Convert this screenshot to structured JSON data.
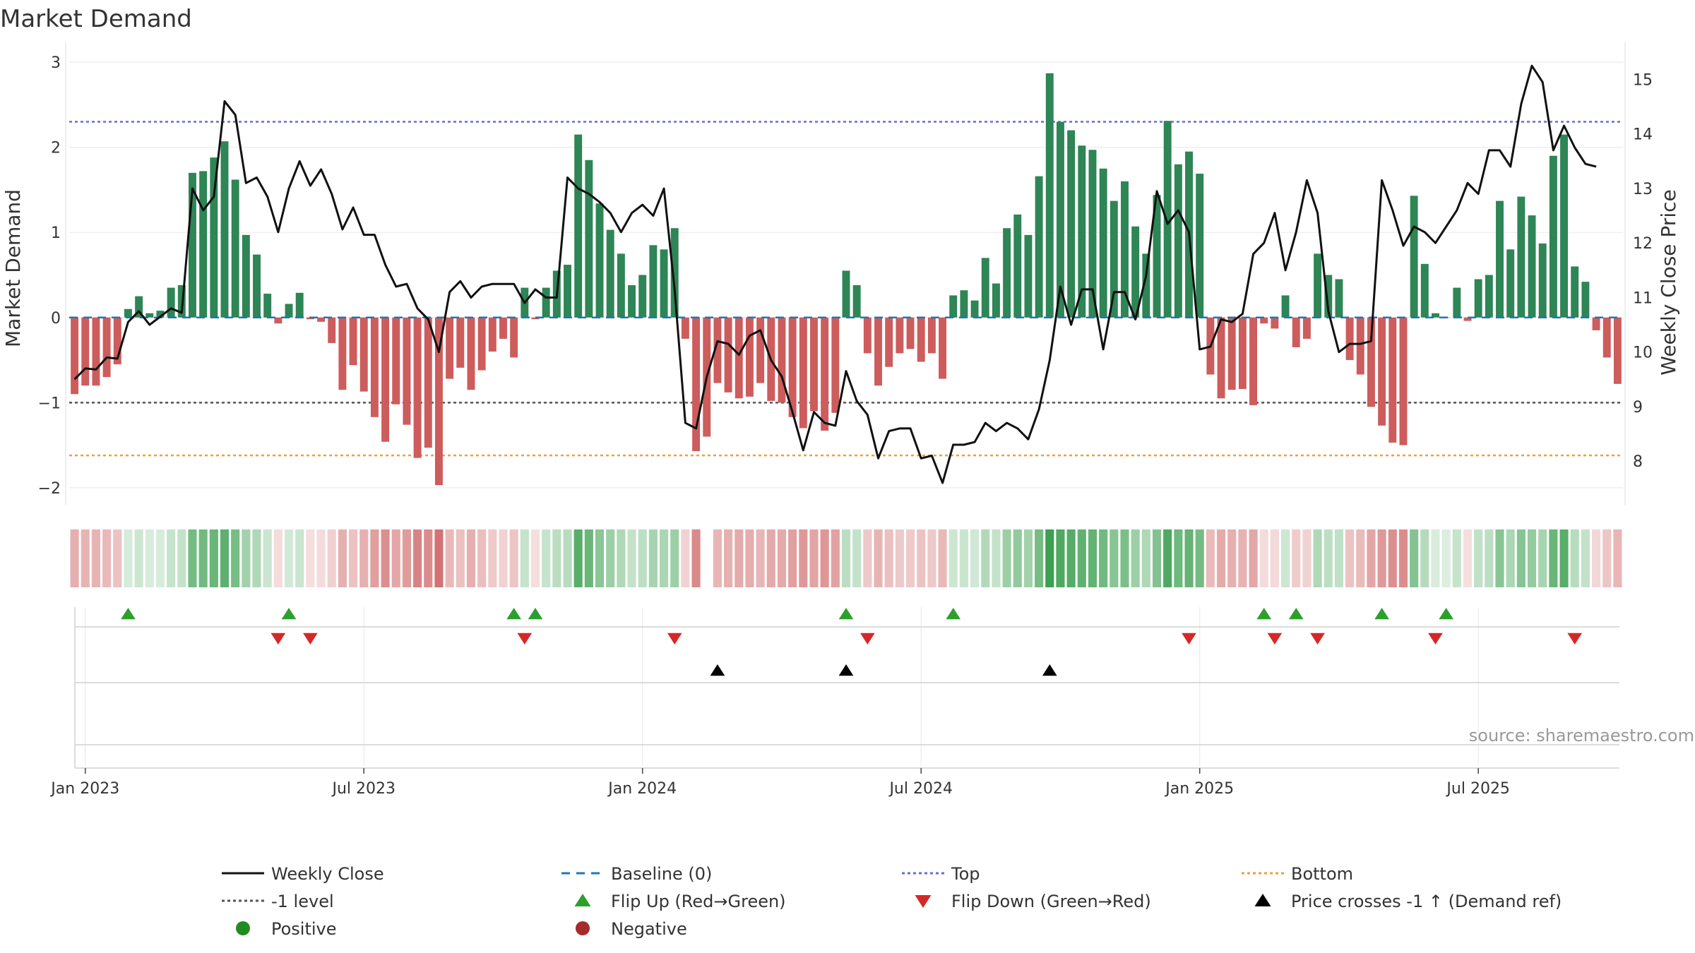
{
  "chart_data": {
    "type": "bar",
    "title": "Market Demand",
    "ylabel": "Market Demand",
    "y2label": "Weekly Close Price",
    "ylim": [
      -2.2,
      3.15
    ],
    "y2lim": [
      7.2,
      15.55
    ],
    "yticks": [
      -2,
      -1,
      0,
      1,
      2,
      3
    ],
    "y2ticks": [
      8,
      9,
      10,
      11,
      12,
      13,
      14,
      15
    ],
    "xticks": [
      "Jan 2023",
      "Jul 2023",
      "Jan 2024",
      "Jul 2024",
      "Jan 2025",
      "Jul 2025"
    ],
    "xtick_weeks": [
      1,
      27,
      53,
      79,
      105,
      131
    ],
    "reference_lines": {
      "top": 2.3,
      "bottom": -1.62,
      "level": -1.0,
      "baseline": 0
    },
    "series": [
      {
        "name": "Market Demand",
        "type": "bar",
        "values": [
          -0.9,
          -0.8,
          -0.8,
          -0.7,
          -0.55,
          0.1,
          0.25,
          0.05,
          0.08,
          0.35,
          0.38,
          1.7,
          1.72,
          1.88,
          2.07,
          1.62,
          0.97,
          0.74,
          0.28,
          -0.07,
          0.16,
          0.29,
          -0.02,
          -0.05,
          -0.3,
          -0.85,
          -0.56,
          -0.87,
          -1.17,
          -1.46,
          -1.02,
          -1.26,
          -1.65,
          -1.53,
          -1.97,
          -0.72,
          -0.59,
          -0.85,
          -0.62,
          -0.4,
          -0.25,
          -0.47,
          0.35,
          -0.02,
          0.35,
          0.55,
          0.62,
          2.15,
          1.85,
          1.34,
          1.03,
          0.75,
          0.38,
          0.5,
          0.85,
          0.8,
          1.05,
          -0.25,
          -1.57,
          -1.4,
          -0.77,
          -0.88,
          -0.95,
          -0.93,
          -0.77,
          -0.98,
          -1.0,
          -1.17,
          -1.3,
          -1.1,
          -1.33,
          -1.12,
          0.55,
          0.38,
          -0.42,
          -0.8,
          -0.58,
          -0.42,
          -0.37,
          -0.52,
          -0.42,
          -0.72,
          0.26,
          0.32,
          0.2,
          0.7,
          0.4,
          1.05,
          1.21,
          0.97,
          1.66,
          2.87,
          2.3,
          2.2,
          2.02,
          1.97,
          1.75,
          1.37,
          1.6,
          1.07,
          0.75,
          1.44,
          2.31,
          1.8,
          1.95,
          1.69,
          -0.67,
          -0.95,
          -0.85,
          -0.84,
          -1.03,
          -0.07,
          -0.13,
          0.26,
          -0.35,
          -0.25,
          0.75,
          0.5,
          0.45,
          -0.5,
          -0.67,
          -1.05,
          -1.27,
          -1.47,
          -1.5,
          1.43,
          0.63,
          0.05,
          0.0,
          0.35,
          -0.04,
          0.45,
          0.5,
          1.37,
          0.8,
          1.42,
          1.2,
          0.87,
          1.9,
          2.15,
          0.6,
          0.42,
          -0.15,
          -0.47,
          -0.78
        ]
      },
      {
        "name": "Weekly Close",
        "type": "line",
        "values": [
          9.5,
          9.7,
          9.68,
          9.9,
          9.88,
          10.55,
          10.75,
          10.5,
          10.65,
          10.8,
          10.72,
          13.0,
          12.6,
          12.85,
          14.6,
          14.35,
          13.1,
          13.2,
          12.85,
          12.2,
          13.0,
          13.5,
          13.05,
          13.35,
          12.9,
          12.25,
          12.65,
          12.15,
          12.15,
          11.6,
          11.2,
          11.25,
          10.8,
          10.6,
          10.0,
          11.1,
          11.3,
          11.0,
          11.2,
          11.25,
          11.25,
          11.25,
          10.9,
          11.15,
          11.0,
          11.0,
          13.2,
          13.0,
          12.9,
          12.75,
          12.55,
          12.2,
          12.55,
          12.7,
          12.5,
          13.0,
          11.15,
          8.7,
          8.6,
          9.55,
          10.2,
          10.15,
          9.95,
          10.3,
          10.4,
          9.85,
          9.55,
          8.9,
          8.2,
          8.9,
          8.7,
          8.65,
          9.65,
          9.1,
          8.85,
          8.05,
          8.55,
          8.6,
          8.6,
          8.05,
          8.1,
          7.6,
          8.3,
          8.3,
          8.35,
          8.7,
          8.55,
          8.7,
          8.6,
          8.4,
          8.95,
          9.85,
          11.2,
          10.5,
          11.15,
          11.15,
          10.05,
          11.1,
          11.1,
          10.6,
          11.4,
          12.95,
          12.35,
          12.6,
          12.2,
          10.05,
          10.1,
          10.6,
          10.55,
          10.7,
          11.8,
          12.0,
          12.55,
          11.5,
          12.2,
          13.15,
          12.55,
          10.75,
          10.0,
          10.15,
          10.15,
          10.2,
          13.15,
          12.6,
          11.95,
          12.3,
          12.2,
          12.0,
          12.3,
          12.6,
          13.1,
          12.9,
          13.7,
          13.7,
          13.4,
          14.55,
          15.25,
          14.95,
          13.7,
          14.15,
          13.75,
          13.45,
          13.4
        ]
      }
    ],
    "demand_strip": {
      "values_source": "Market Demand"
    },
    "flip_up_weeks": [
      5,
      20,
      41,
      43,
      72,
      82,
      111,
      114,
      122,
      128
    ],
    "flip_down_weeks": [
      19,
      22,
      42,
      56,
      74,
      104,
      112,
      116,
      127,
      140
    ],
    "price_cross_weeks": [
      60,
      72,
      91
    ],
    "legend": [
      {
        "label": "Weekly Close",
        "kind": "line",
        "color": "#111111"
      },
      {
        "label": "Baseline (0)",
        "kind": "dash",
        "color": "#1f77b4"
      },
      {
        "label": "Top",
        "kind": "dot",
        "color": "#6a6ad8"
      },
      {
        "label": "Bottom",
        "kind": "dot",
        "color": "#e8a23a"
      },
      {
        "label": "-1 level",
        "kind": "dot",
        "color": "#555555"
      },
      {
        "label": "Flip Up (Red→Green)",
        "kind": "tri-up",
        "color": "#2ca02c"
      },
      {
        "label": "Flip Down (Green→Red)",
        "kind": "tri-down",
        "color": "#d62728"
      },
      {
        "label": "Price crosses -1 ↑ (Demand ref)",
        "kind": "tri-up",
        "color": "#000000"
      },
      {
        "label": "Positive",
        "kind": "dot-marker",
        "color": "#228b22"
      },
      {
        "label": "Negative",
        "kind": "dot-marker",
        "color": "#a52a2a"
      }
    ],
    "source": "source: sharemaestro.com"
  },
  "colors": {
    "positive_bar": "#2e8555",
    "negative_bar": "#cd5c5c",
    "price_line": "#111111",
    "baseline": "#1f77b4",
    "top": "#6a6ad8",
    "bottom": "#e8a23a",
    "level": "#555555",
    "flip_up": "#2ca02c",
    "flip_down": "#d62728",
    "cross": "#000000",
    "grid": "#e8e8e8"
  }
}
